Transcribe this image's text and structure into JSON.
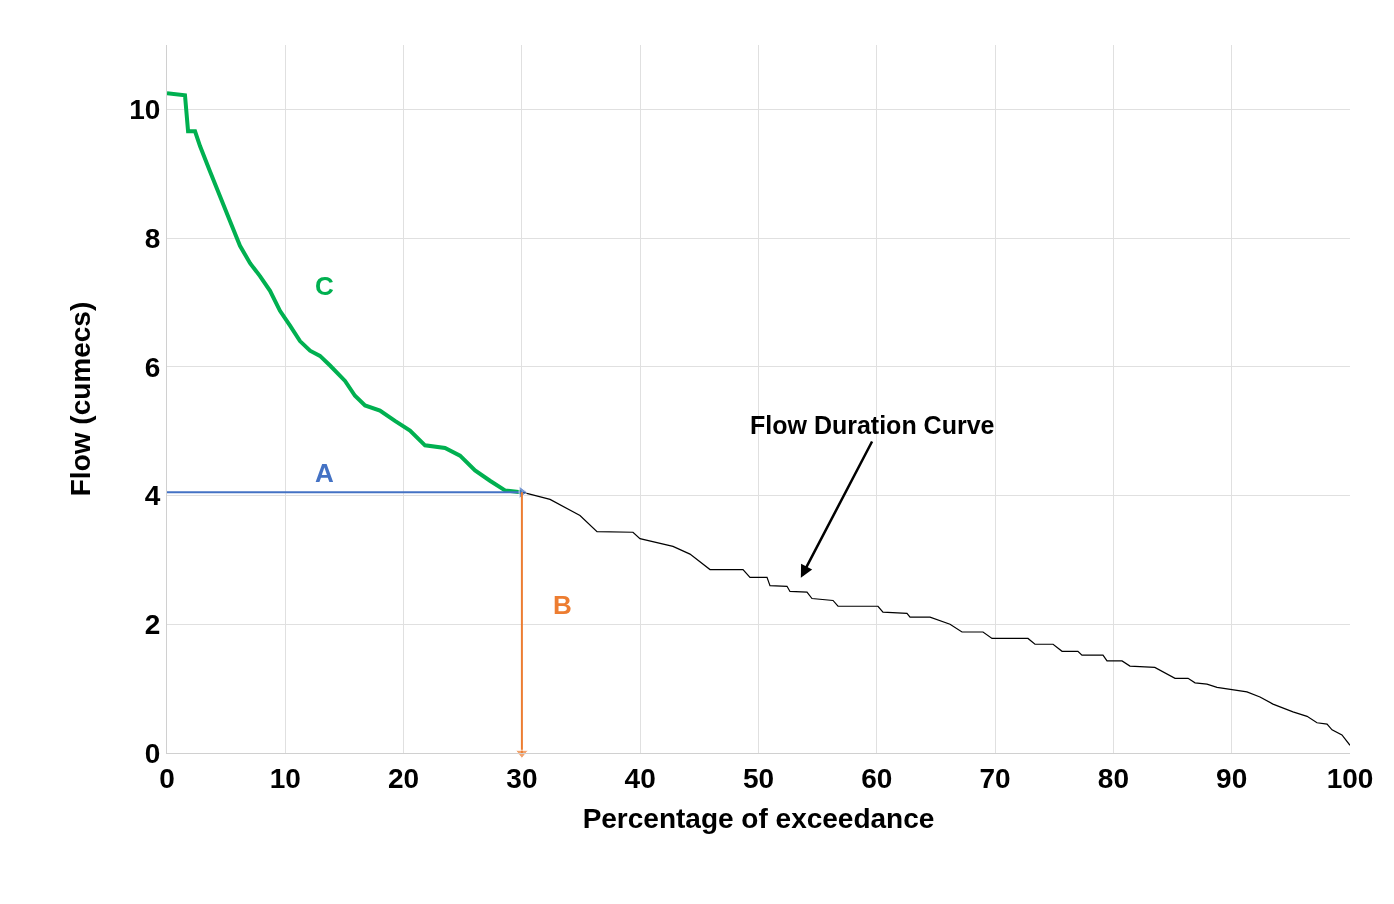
{
  "chart_data": {
    "type": "line",
    "xlabel": "Percentage of exceedance",
    "ylabel": "Flow (cumecs)",
    "xlim": [
      0,
      100
    ],
    "xticks": [
      0,
      10,
      20,
      30,
      40,
      50,
      60,
      70,
      80,
      90,
      100
    ],
    "ylim": [
      0,
      11
    ],
    "yticks": [
      0,
      2,
      4,
      6,
      8,
      10
    ],
    "grid": true,
    "series": [
      {
        "color": "#000000",
        "x": [
          30.09,
          32.38,
          34.91,
          36.35,
          39.39,
          39.98,
          42.77,
          44.21,
          45.9,
          48.69,
          49.28,
          50.72,
          50.97,
          52.41,
          52.66,
          54.1,
          54.52,
          56.3,
          56.72,
          60.1,
          60.52,
          62.55,
          62.81,
          64.5,
          66.19,
          67.2,
          68.98,
          69.74,
          72.78,
          73.37,
          74.9,
          75.66,
          77.0,
          77.34,
          79.12,
          79.46,
          80.73,
          81.4,
          83.5,
          85.21,
          86.31,
          86.9,
          87.91,
          88.76,
          91.29,
          92.39,
          93.49,
          95.18,
          96.37,
          97.21,
          98.06,
          98.48,
          99.32,
          100
        ],
        "values": [
          4.05,
          3.94,
          3.69,
          3.44,
          3.43,
          3.33,
          3.21,
          3.09,
          2.85,
          2.85,
          2.73,
          2.73,
          2.6,
          2.59,
          2.51,
          2.5,
          2.4,
          2.37,
          2.28,
          2.28,
          2.19,
          2.17,
          2.11,
          2.11,
          2.0,
          1.88,
          1.88,
          1.78,
          1.78,
          1.69,
          1.69,
          1.58,
          1.58,
          1.52,
          1.52,
          1.43,
          1.43,
          1.35,
          1.33,
          1.16,
          1.16,
          1.09,
          1.07,
          1.02,
          0.95,
          0.87,
          0.76,
          0.64,
          0.57,
          0.47,
          0.45,
          0.36,
          0.28,
          0.12
        ]
      },
      {
        "color": "#00b050",
        "x": [
          0,
          1.52,
          1.78,
          2.37,
          2.79,
          3.63,
          4.48,
          5.33,
          6.17,
          7.02,
          7.86,
          8.71,
          9.55,
          10.4,
          11.24,
          12.09,
          12.93,
          13.78,
          15.05,
          15.89,
          16.74,
          18.0,
          19.27,
          20.54,
          21.81,
          23.5,
          24.77,
          26.04,
          27.3,
          28.57,
          29.92
        ],
        "values": [
          10.25,
          10.22,
          9.66,
          9.66,
          9.43,
          9.04,
          8.65,
          8.26,
          7.88,
          7.61,
          7.41,
          7.18,
          6.87,
          6.64,
          6.4,
          6.25,
          6.17,
          6.02,
          5.78,
          5.55,
          5.4,
          5.32,
          5.16,
          5.01,
          4.78,
          4.74,
          4.62,
          4.39,
          4.23,
          4.08,
          4.05
        ]
      },
      {
        "color": "#4472c4",
        "marker": "triangle",
        "x": [
          0,
          30
        ],
        "values": [
          4.05,
          4.05
        ]
      },
      {
        "color": "#ed7d31",
        "marker": "triangle",
        "x": [
          30,
          30
        ],
        "values": [
          4.05,
          0
        ]
      }
    ],
    "annotations": [
      "C",
      "A",
      "B",
      "Flow Duration Curve"
    ]
  }
}
